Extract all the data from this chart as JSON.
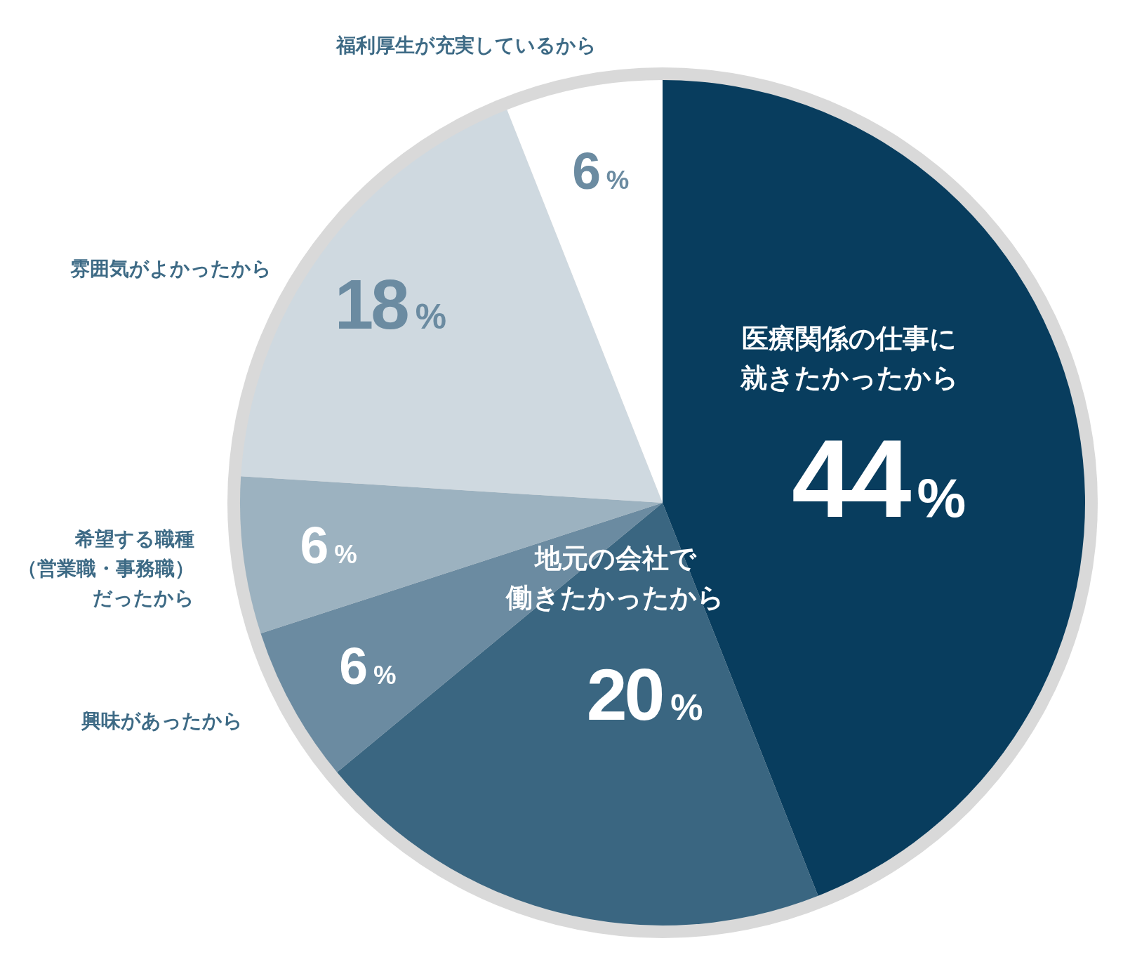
{
  "chart_data": {
    "type": "pie",
    "categories": [
      "医療関係の仕事に就きたかったから",
      "地元の会社で働きたかったから",
      "興味があったから",
      "希望する職種（営業職・事務職）だったから",
      "雰囲気がよかったから",
      "福利厚生が充実しているから"
    ],
    "values": [
      44,
      20,
      6,
      6,
      18,
      6
    ],
    "colors": [
      "#083d5e",
      "#3a6681",
      "#6b8ba1",
      "#9cb2c0",
      "#cfd9e0",
      "#ffffff"
    ],
    "value_labels": [
      "44%",
      "20%",
      "6%",
      "6%",
      "18%",
      "6%"
    ]
  }
}
